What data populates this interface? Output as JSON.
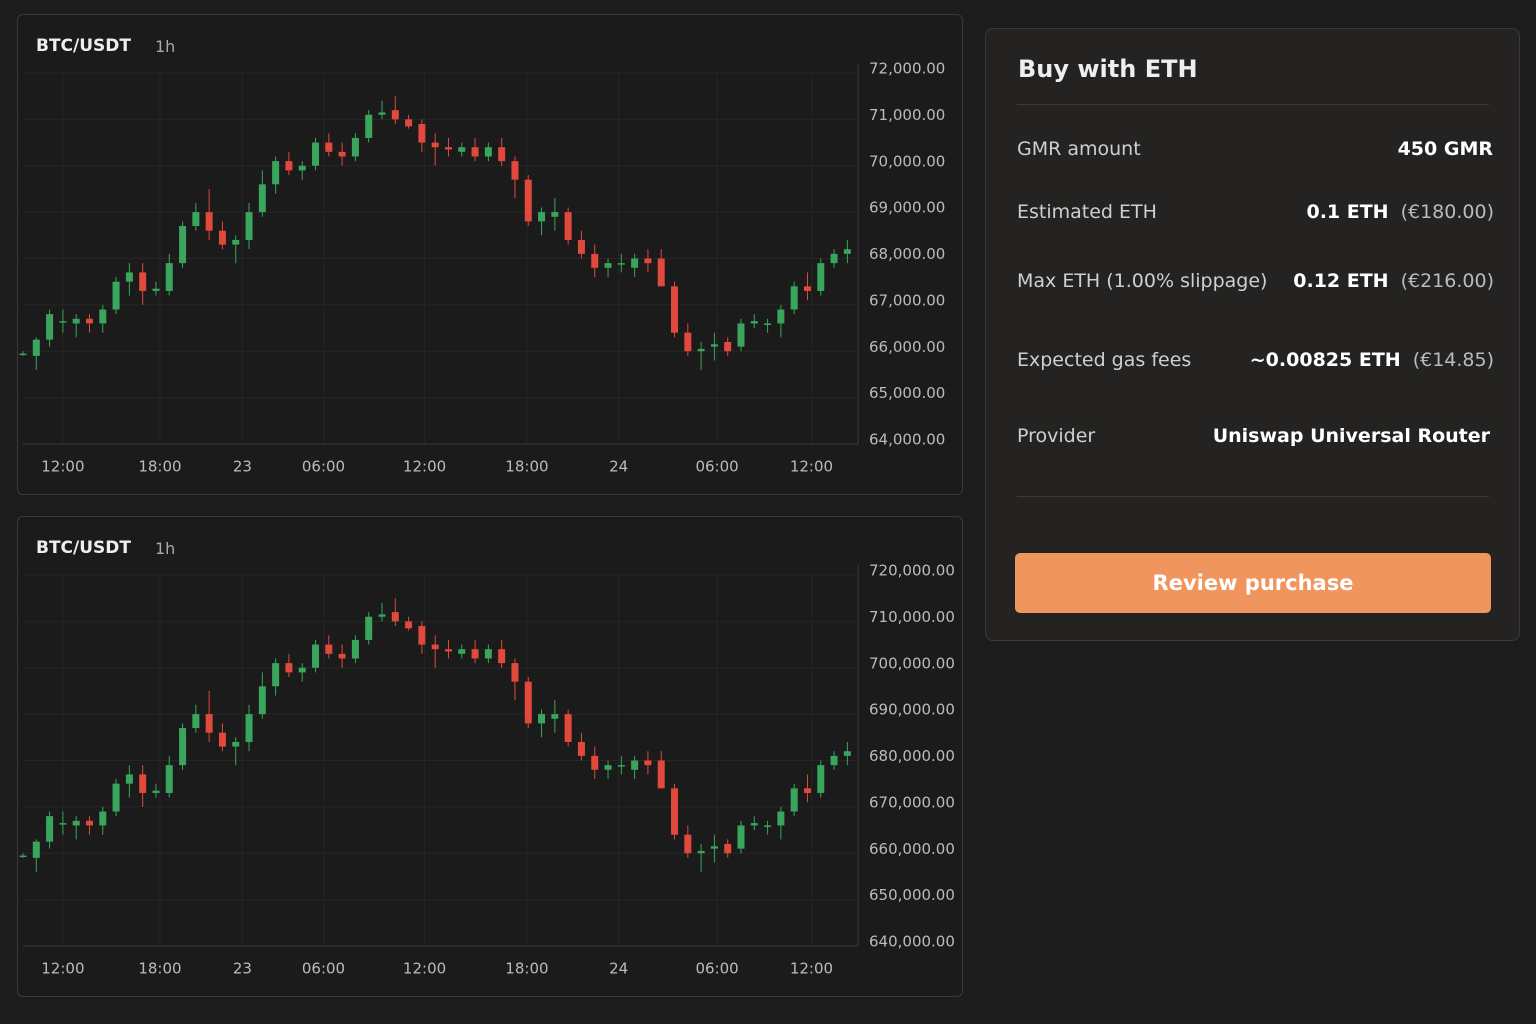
{
  "chart_data": [
    {
      "type": "candlestick",
      "title": "BTC/USDT",
      "interval": "1h",
      "up_color": "#3aa55c",
      "down_color": "#e0493c",
      "grid": true,
      "xlim": [
        0,
        62.8
      ],
      "ylim": [
        64000,
        72000
      ],
      "xticks": [
        {
          "value": 3,
          "label": "12:00"
        },
        {
          "value": 10.3,
          "label": "18:00"
        },
        {
          "value": 16.5,
          "label": "23"
        },
        {
          "value": 22.6,
          "label": "06:00"
        },
        {
          "value": 30.2,
          "label": "12:00"
        },
        {
          "value": 37.9,
          "label": "18:00"
        },
        {
          "value": 44.8,
          "label": "24"
        },
        {
          "value": 52.2,
          "label": "06:00"
        },
        {
          "value": 59.3,
          "label": "12:00"
        }
      ],
      "yticks": [
        {
          "value": 64000,
          "label": "64,000.00"
        },
        {
          "value": 65000,
          "label": "65,000.00"
        },
        {
          "value": 66000,
          "label": "66,000.00"
        },
        {
          "value": 67000,
          "label": "67,000.00"
        },
        {
          "value": 68000,
          "label": "68,000.00"
        },
        {
          "value": 69000,
          "label": "69,000.00"
        },
        {
          "value": 70000,
          "label": "70,000.00"
        },
        {
          "value": 71000,
          "label": "71,000.00"
        },
        {
          "value": 72000,
          "label": "72,000.00"
        }
      ],
      "open": [
        65950,
        65900,
        66250,
        66650,
        66600,
        66700,
        66600,
        66900,
        67500,
        67700,
        67300,
        67300,
        67900,
        68700,
        69000,
        68600,
        68300,
        68400,
        69000,
        69600,
        70100,
        69900,
        70000,
        70500,
        70300,
        70200,
        70600,
        71100,
        71200,
        71000,
        70900,
        70500,
        70400,
        70300,
        70400,
        70200,
        70400,
        70100,
        69700,
        68800,
        68900,
        69000,
        68400,
        68100,
        67800,
        67900,
        67800,
        68000,
        68000,
        67400,
        66400,
        66000,
        66100,
        66200,
        66100,
        66600,
        66600,
        66600,
        66900,
        67400,
        67300,
        67900,
        68100
      ],
      "high": [
        66000,
        66300,
        66900,
        66900,
        66800,
        66800,
        67000,
        67600,
        67900,
        67900,
        67500,
        68100,
        68800,
        69200,
        69500,
        68800,
        68500,
        69200,
        69900,
        70200,
        70300,
        70100,
        70600,
        70700,
        70500,
        70700,
        71200,
        71400,
        71500,
        71100,
        71000,
        70700,
        70600,
        70500,
        70600,
        70500,
        70600,
        70200,
        69800,
        69100,
        69300,
        69100,
        68600,
        68300,
        68000,
        68100,
        68100,
        68200,
        68200,
        67500,
        66600,
        66200,
        66400,
        66300,
        66700,
        66800,
        66700,
        67000,
        67500,
        67700,
        68000,
        68200,
        68400
      ],
      "low": [
        65900,
        65600,
        66100,
        66400,
        66300,
        66400,
        66400,
        66800,
        67200,
        67000,
        67200,
        67200,
        67800,
        68600,
        68400,
        68200,
        67900,
        68200,
        68900,
        69400,
        69800,
        69700,
        69900,
        70200,
        70000,
        70100,
        70500,
        71000,
        70900,
        70800,
        70300,
        70000,
        70200,
        70200,
        70100,
        70100,
        70000,
        69300,
        68700,
        68500,
        68600,
        68300,
        68000,
        67600,
        67600,
        67700,
        67600,
        67700,
        67400,
        66300,
        65900,
        65600,
        65800,
        65900,
        66000,
        66500,
        66400,
        66300,
        66800,
        67100,
        67200,
        67800,
        67900
      ],
      "close": [
        65950,
        66250,
        66800,
        66650,
        66700,
        66600,
        66900,
        67500,
        67700,
        67300,
        67350,
        67900,
        68700,
        69000,
        68600,
        68300,
        68400,
        69000,
        69600,
        70100,
        69900,
        70000,
        70500,
        70300,
        70200,
        70600,
        71100,
        71150,
        71000,
        70850,
        70500,
        70400,
        70350,
        70400,
        70200,
        70400,
        70100,
        69700,
        68800,
        69000,
        69000,
        68400,
        68100,
        67800,
        67900,
        67900,
        68000,
        67900,
        67400,
        66400,
        66000,
        66050,
        66150,
        66000,
        66600,
        66650,
        66600,
        66900,
        67400,
        67300,
        67900,
        68100,
        68200
      ]
    },
    {
      "type": "candlestick",
      "title": "BTC/USDT",
      "interval": "1h",
      "up_color": "#3aa55c",
      "down_color": "#e0493c",
      "grid": true,
      "xlim": [
        0,
        62.8
      ],
      "ylim": [
        640000,
        720000
      ],
      "xticks": [
        {
          "value": 3,
          "label": "12:00"
        },
        {
          "value": 10.3,
          "label": "18:00"
        },
        {
          "value": 16.5,
          "label": "23"
        },
        {
          "value": 22.6,
          "label": "06:00"
        },
        {
          "value": 30.2,
          "label": "12:00"
        },
        {
          "value": 37.9,
          "label": "18:00"
        },
        {
          "value": 44.8,
          "label": "24"
        },
        {
          "value": 52.2,
          "label": "06:00"
        },
        {
          "value": 59.3,
          "label": "12:00"
        }
      ],
      "yticks": [
        {
          "value": 640000,
          "label": "640,000.00"
        },
        {
          "value": 650000,
          "label": "650,000.00"
        },
        {
          "value": 660000,
          "label": "660,000.00"
        },
        {
          "value": 670000,
          "label": "670,000.00"
        },
        {
          "value": 680000,
          "label": "680,000.00"
        },
        {
          "value": 690000,
          "label": "690,000.00"
        },
        {
          "value": 700000,
          "label": "700,000.00"
        },
        {
          "value": 710000,
          "label": "710,000.00"
        },
        {
          "value": 720000,
          "label": "720,000.00"
        }
      ],
      "open": [
        659500,
        659000,
        662500,
        666500,
        666000,
        667000,
        666000,
        669000,
        675000,
        677000,
        673000,
        673000,
        679000,
        687000,
        690000,
        686000,
        683000,
        684000,
        690000,
        696000,
        701000,
        699000,
        700000,
        705000,
        703000,
        702000,
        706000,
        711000,
        712000,
        710000,
        709000,
        705000,
        704000,
        703000,
        704000,
        702000,
        704000,
        701000,
        697000,
        688000,
        689000,
        690000,
        684000,
        681000,
        678000,
        679000,
        678000,
        680000,
        680000,
        674000,
        664000,
        660000,
        661000,
        662000,
        661000,
        666000,
        666000,
        666000,
        669000,
        674000,
        673000,
        679000,
        681000
      ],
      "high": [
        660000,
        663000,
        669000,
        669000,
        668000,
        668000,
        670000,
        676000,
        679000,
        679000,
        675000,
        681000,
        688000,
        692000,
        695000,
        688000,
        685000,
        692000,
        699000,
        702000,
        703000,
        701000,
        706000,
        707000,
        705000,
        707000,
        712000,
        714000,
        715000,
        711000,
        710000,
        707000,
        706000,
        705000,
        706000,
        705000,
        706000,
        702000,
        698000,
        691000,
        693000,
        691000,
        686000,
        683000,
        680000,
        681000,
        681000,
        682000,
        682000,
        675000,
        666000,
        662000,
        664000,
        663000,
        667000,
        668000,
        667000,
        670000,
        675000,
        677000,
        680000,
        682000,
        684000
      ],
      "low": [
        659000,
        656000,
        661000,
        664000,
        663000,
        664000,
        664000,
        668000,
        672000,
        670000,
        672000,
        672000,
        678000,
        686000,
        684000,
        682000,
        679000,
        682000,
        689000,
        694000,
        698000,
        697000,
        699000,
        702000,
        700000,
        701000,
        705000,
        710000,
        709000,
        708000,
        703000,
        700000,
        702000,
        702000,
        701000,
        701000,
        700000,
        693000,
        687000,
        685000,
        686000,
        683000,
        680000,
        676000,
        676000,
        677000,
        676000,
        677000,
        674000,
        663000,
        659000,
        656000,
        658000,
        659000,
        660000,
        665000,
        664000,
        663000,
        668000,
        671000,
        672000,
        678000,
        679000
      ],
      "close": [
        659500,
        662500,
        668000,
        666500,
        667000,
        666000,
        669000,
        675000,
        677000,
        673000,
        673500,
        679000,
        687000,
        690000,
        686000,
        683000,
        684000,
        690000,
        696000,
        701000,
        699000,
        700000,
        705000,
        703000,
        702000,
        706000,
        711000,
        711500,
        710000,
        708500,
        705000,
        704000,
        703500,
        704000,
        702000,
        704000,
        701000,
        697000,
        688000,
        690000,
        690000,
        684000,
        681000,
        678000,
        679000,
        679000,
        680000,
        679000,
        674000,
        664000,
        660000,
        660500,
        661500,
        660000,
        666000,
        666500,
        666000,
        669000,
        674000,
        673000,
        679000,
        681000,
        682000
      ]
    }
  ],
  "purchase": {
    "title": "Buy with ETH",
    "rows": [
      {
        "label": "GMR amount",
        "value": "450 GMR"
      },
      {
        "label": "Estimated ETH",
        "value": "0.1 ETH",
        "fiat": "(€180.00)"
      },
      {
        "label": "Max ETH (1.00% slippage)",
        "value": "0.12 ETH",
        "fiat": "(€216.00)"
      },
      {
        "label": "Expected gas fees",
        "value": "~0.00825 ETH",
        "fiat": "(€14.85)"
      },
      {
        "label": "Provider",
        "value": "Uniswap Universal Router"
      }
    ],
    "button": "Review purchase"
  }
}
